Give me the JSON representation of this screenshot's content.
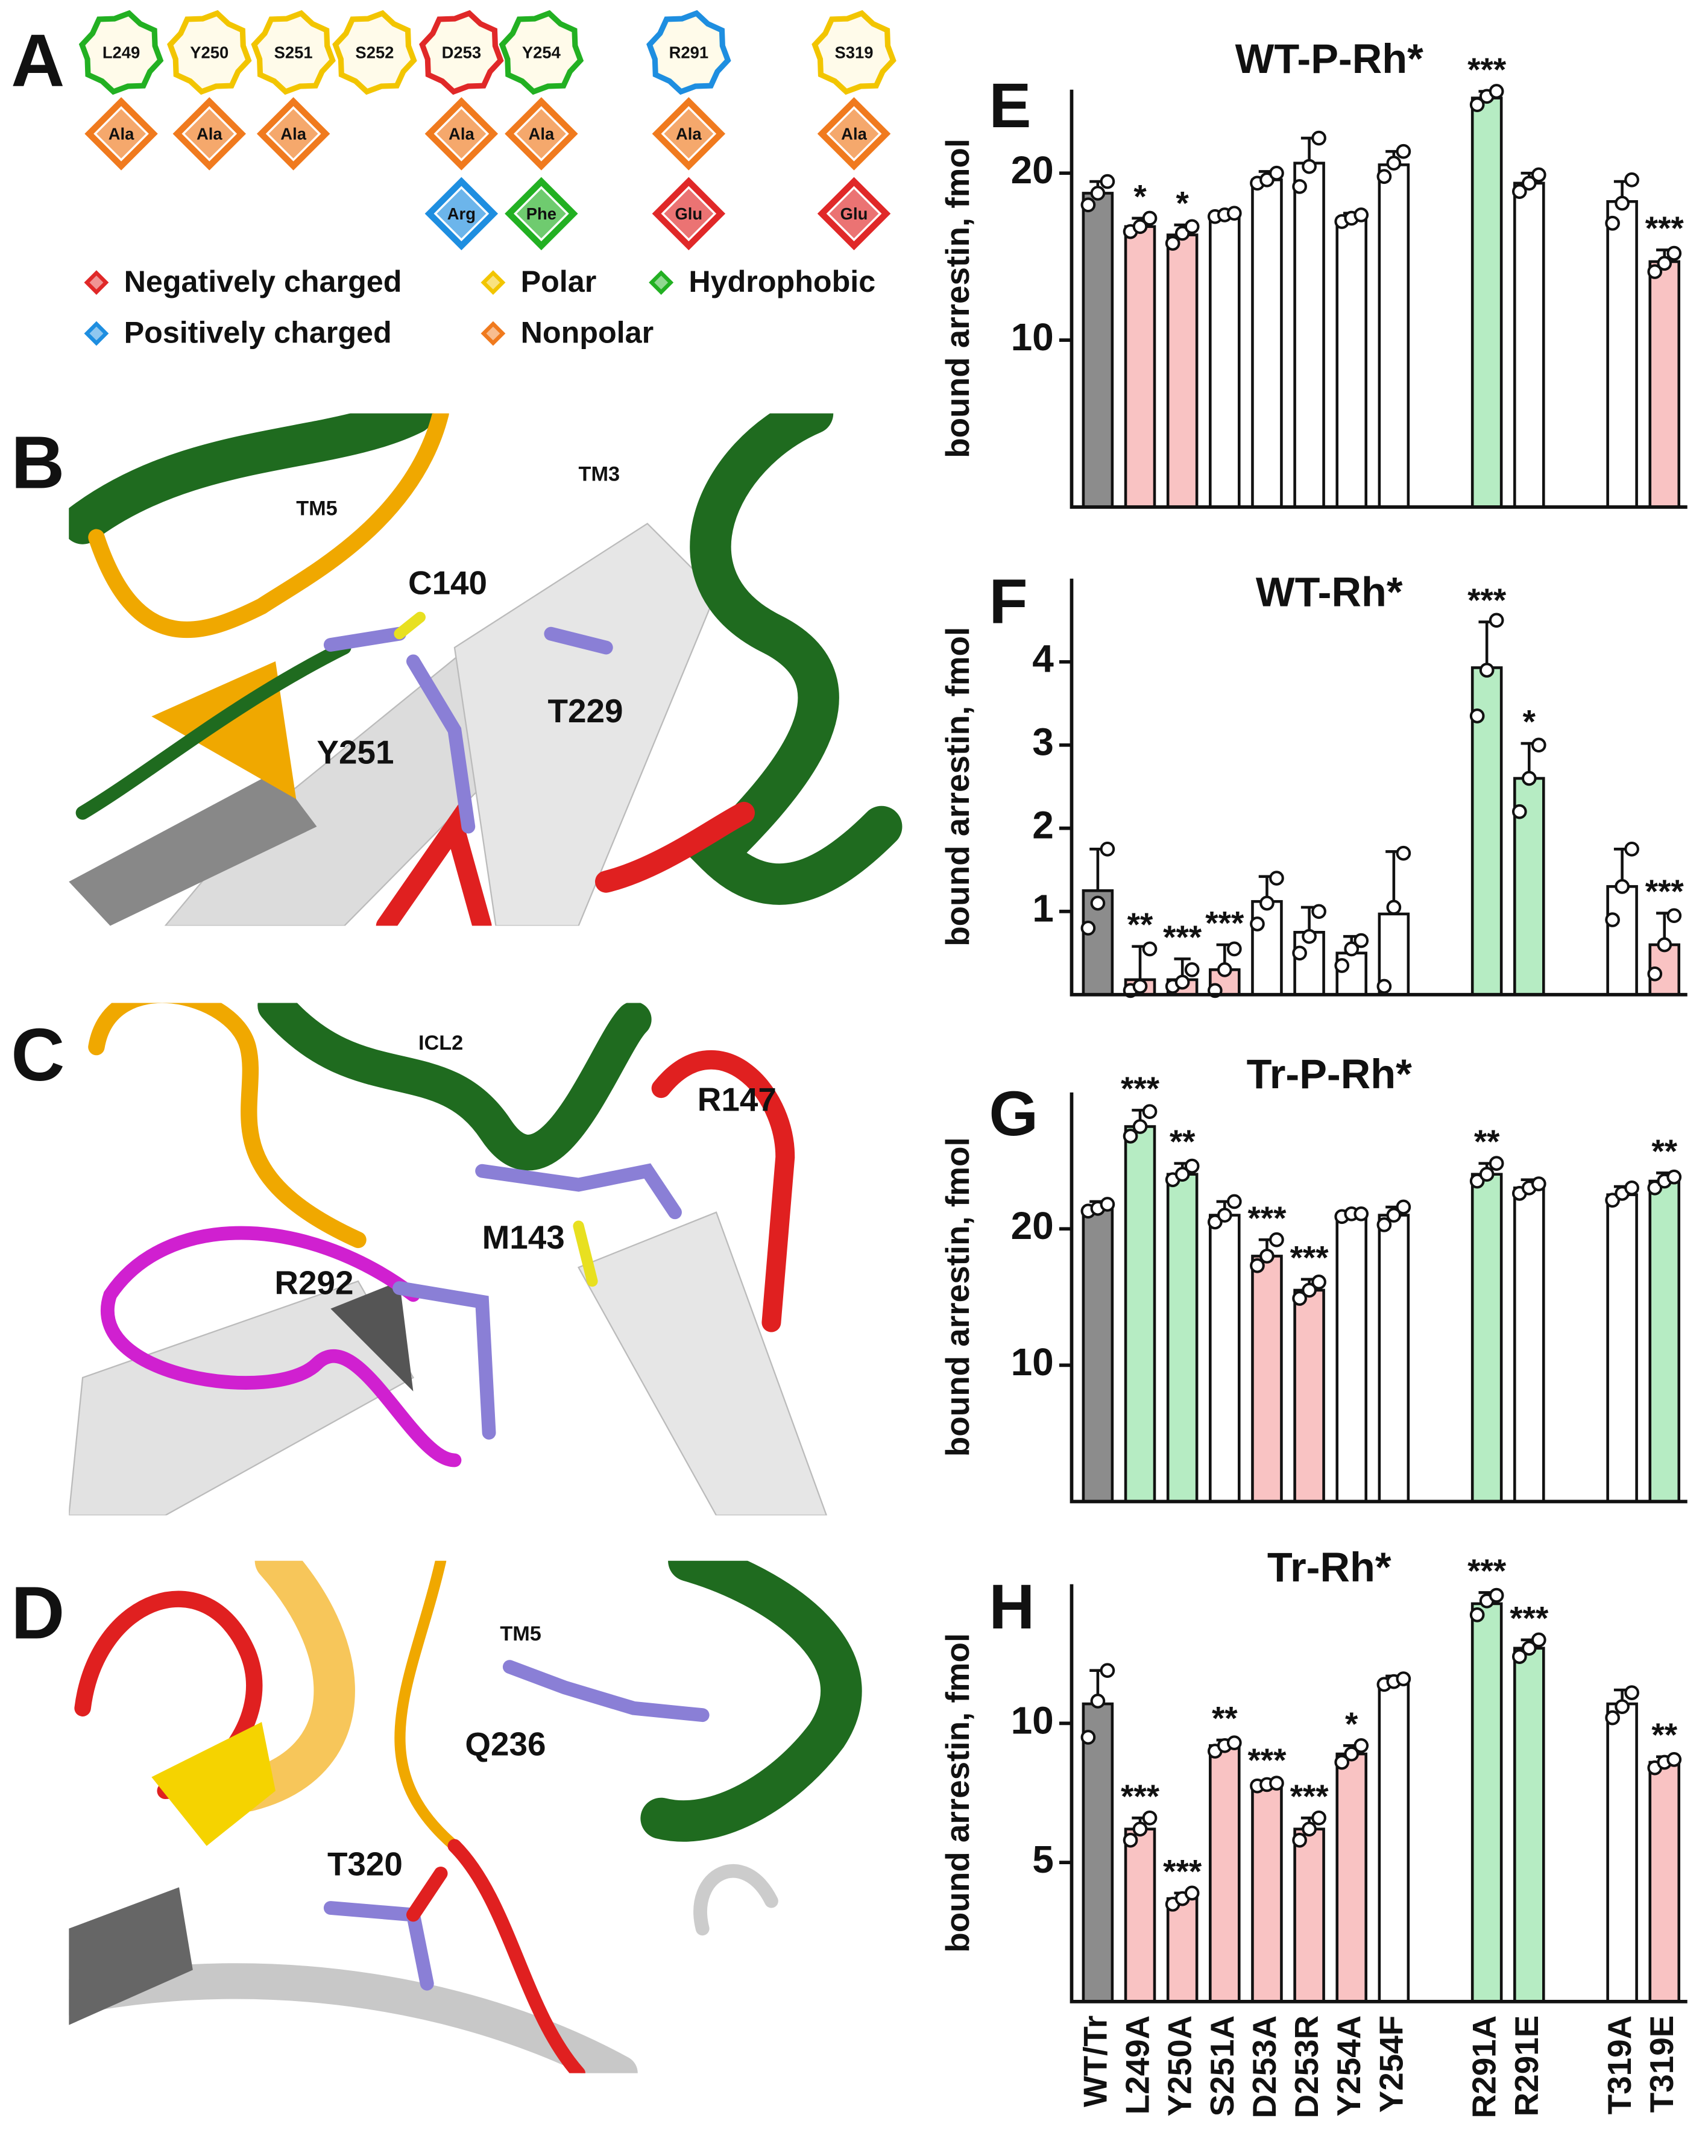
{
  "mutation_diagram": {
    "panel_label": "A",
    "residues": [
      {
        "label": "L249",
        "color": "#22b022",
        "mutants": [
          {
            "label": "Ala",
            "color": "#f07a1e"
          }
        ]
      },
      {
        "label": "Y250",
        "color": "#f2c500",
        "mutants": [
          {
            "label": "Ala",
            "color": "#f07a1e"
          }
        ]
      },
      {
        "label": "S251",
        "color": "#f2c500",
        "mutants": [
          {
            "label": "Ala",
            "color": "#f07a1e"
          }
        ]
      },
      {
        "label": "S252",
        "color": "#f2c500",
        "mutants": []
      },
      {
        "label": "D253",
        "color": "#e02828",
        "mutants": [
          {
            "label": "Ala",
            "color": "#f07a1e"
          },
          {
            "label": "Arg",
            "color": "#1e8ee0"
          }
        ]
      },
      {
        "label": "Y254",
        "color": "#22b022",
        "mutants": [
          {
            "label": "Ala",
            "color": "#f07a1e"
          },
          {
            "label": "Phe",
            "color": "#22b022"
          }
        ]
      },
      {
        "label": "R291",
        "color": "#1e8ee0",
        "mutants": [
          {
            "label": "Ala",
            "color": "#f07a1e"
          },
          {
            "label": "Glu",
            "color": "#e02828"
          }
        ]
      },
      {
        "label": "S319",
        "color": "#f2c500",
        "mutants": [
          {
            "label": "Ala",
            "color": "#f07a1e"
          },
          {
            "label": "Glu",
            "color": "#e02828"
          }
        ]
      }
    ],
    "legend": [
      {
        "label": "Negatively charged",
        "color": "#e02828"
      },
      {
        "label": "Polar",
        "color": "#f2c500"
      },
      {
        "label": "Hydrophobic",
        "color": "#22b022"
      },
      {
        "label": "Positively charged",
        "color": "#1e8ee0"
      },
      {
        "label": "Nonpolar",
        "color": "#f07a1e"
      }
    ]
  },
  "structure_panels": [
    {
      "panel_label": "B",
      "labels": [
        "TM5",
        "TM3",
        "C140",
        "Y251",
        "T229"
      ]
    },
    {
      "panel_label": "C",
      "labels": [
        "ICL2",
        "R147",
        "M143",
        "R292"
      ]
    },
    {
      "panel_label": "D",
      "labels": [
        "TM5",
        "Q236",
        "T320"
      ]
    }
  ],
  "chart_data": [
    {
      "type": "bar",
      "panel_label": "E",
      "title": "WT-P-Rh*",
      "y_label": "bound arrestin, fmol",
      "ylim": [
        0,
        25
      ],
      "yticks": [
        10,
        20
      ],
      "values": [
        18.8,
        16.8,
        16.3,
        17.5,
        19.6,
        20.6,
        17.3,
        20.5,
        24.5,
        19.4,
        18.3,
        14.7
      ],
      "errors": [
        0.7,
        0.5,
        0.6,
        0.2,
        0.5,
        1.5,
        0.3,
        0.8,
        0.4,
        0.6,
        1.2,
        0.7
      ],
      "points": [
        [
          18.1,
          18.8,
          19.5
        ],
        [
          16.5,
          16.8,
          17.3
        ],
        [
          15.8,
          16.4,
          16.8
        ],
        [
          17.4,
          17.5,
          17.6
        ],
        [
          19.4,
          19.6,
          20.0
        ],
        [
          19.2,
          20.4,
          22.1
        ],
        [
          17.1,
          17.3,
          17.5
        ],
        [
          19.8,
          20.6,
          21.3
        ],
        [
          24.1,
          24.6,
          24.9
        ],
        [
          18.9,
          19.4,
          19.9
        ],
        [
          17.0,
          18.2,
          19.6
        ],
        [
          14.1,
          14.6,
          15.2
        ]
      ],
      "colors": [
        "#8c8c8c",
        "#f9c3c3",
        "#f9c3c3",
        "#ffffff",
        "#ffffff",
        "#ffffff",
        "#ffffff",
        "#ffffff",
        "#b6ecc3",
        "#ffffff",
        "#ffffff",
        "#f9c3c3"
      ],
      "significance": [
        null,
        "*",
        "*",
        null,
        null,
        null,
        null,
        null,
        "***",
        null,
        null,
        "***"
      ]
    },
    {
      "type": "bar",
      "panel_label": "F",
      "title": "WT-Rh*",
      "y_label": "bound arrestin, fmol",
      "ylim": [
        0,
        5
      ],
      "yticks": [
        1,
        2,
        3,
        4
      ],
      "values": [
        1.25,
        0.18,
        0.18,
        0.3,
        1.12,
        0.75,
        0.5,
        0.97,
        3.93,
        2.6,
        1.3,
        0.6
      ],
      "errors": [
        0.5,
        0.4,
        0.25,
        0.3,
        0.3,
        0.3,
        0.2,
        0.75,
        0.55,
        0.42,
        0.45,
        0.38
      ],
      "points": [
        [
          0.8,
          1.1,
          1.75
        ],
        [
          0.05,
          0.1,
          0.55
        ],
        [
          0.1,
          0.15,
          0.3
        ],
        [
          0.05,
          0.3,
          0.55
        ],
        [
          0.85,
          1.1,
          1.4
        ],
        [
          0.5,
          0.7,
          1.0
        ],
        [
          0.35,
          0.55,
          0.65
        ],
        [
          0.1,
          1.05,
          1.7
        ],
        [
          3.35,
          3.9,
          4.5
        ],
        [
          2.2,
          2.6,
          3.0
        ],
        [
          0.9,
          1.3,
          1.75
        ],
        [
          0.25,
          0.6,
          0.95
        ]
      ],
      "colors": [
        "#8c8c8c",
        "#f9c3c3",
        "#f9c3c3",
        "#f9c3c3",
        "#ffffff",
        "#ffffff",
        "#ffffff",
        "#ffffff",
        "#b6ecc3",
        "#b6ecc3",
        "#ffffff",
        "#f9c3c3"
      ],
      "significance": [
        null,
        "**",
        "***",
        "***",
        null,
        null,
        null,
        null,
        "***",
        "*",
        null,
        "***"
      ]
    },
    {
      "type": "bar",
      "panel_label": "G",
      "title": "Tr-P-Rh*",
      "y_label": "bound arrestin, fmol",
      "ylim": [
        0,
        30
      ],
      "yticks": [
        10,
        20
      ],
      "values": [
        21.5,
        27.5,
        24,
        21,
        18,
        15.5,
        21,
        21,
        24,
        23,
        22.5,
        23.5
      ],
      "errors": [
        0.5,
        1.2,
        0.8,
        1,
        1.2,
        0.8,
        0.3,
        0.6,
        0.8,
        0.6,
        0.6,
        0.6
      ],
      "points": [
        [
          21.3,
          21.5,
          21.8
        ],
        [
          26.8,
          27.5,
          28.6
        ],
        [
          23.6,
          24,
          24.6
        ],
        [
          20.5,
          21,
          22
        ],
        [
          17.3,
          18,
          19.2
        ],
        [
          14.9,
          15.5,
          16.1
        ],
        [
          20.9,
          21.1,
          21.1
        ],
        [
          20.3,
          21,
          21.6
        ],
        [
          23.5,
          24,
          24.8
        ],
        [
          22.6,
          23,
          23.3
        ],
        [
          22.1,
          22.6,
          23
        ],
        [
          23,
          23.5,
          23.8
        ]
      ],
      "colors": [
        "#8c8c8c",
        "#b6ecc3",
        "#b6ecc3",
        "#ffffff",
        "#f9c3c3",
        "#f9c3c3",
        "#ffffff",
        "#ffffff",
        "#b6ecc3",
        "#ffffff",
        "#ffffff",
        "#b6ecc3"
      ],
      "significance": [
        null,
        "***",
        "**",
        null,
        "***",
        "***",
        null,
        null,
        "**",
        null,
        null,
        "**"
      ]
    },
    {
      "type": "bar",
      "panel_label": "H",
      "title": "Tr-Rh*",
      "y_label": "bound arrestin, fmol",
      "ylim": [
        0,
        15
      ],
      "yticks": [
        5,
        10
      ],
      "categories": [
        "WT/Tr",
        "L249A",
        "Y250A",
        "S251A",
        "D253A",
        "D253R",
        "Y254A",
        "Y254F",
        "R291A",
        "R291E",
        "T319A",
        "T319E"
      ],
      "values": [
        10.7,
        6.2,
        3.7,
        9.2,
        7.8,
        6.2,
        8.9,
        11.5,
        14.3,
        12.7,
        10.7,
        8.6
      ],
      "errors": [
        1.2,
        0.4,
        0.2,
        0.2,
        0.1,
        0.4,
        0.3,
        0.2,
        0.4,
        0.3,
        0.5,
        0.2
      ],
      "points": [
        [
          9.5,
          10.8,
          11.9
        ],
        [
          5.8,
          6.2,
          6.6
        ],
        [
          3.5,
          3.7,
          3.9
        ],
        [
          9,
          9.2,
          9.3
        ],
        [
          7.75,
          7.8,
          7.85
        ],
        [
          5.8,
          6.2,
          6.6
        ],
        [
          8.6,
          8.9,
          9.2
        ],
        [
          11.4,
          11.5,
          11.6
        ],
        [
          13.9,
          14.4,
          14.6
        ],
        [
          12.4,
          12.7,
          13
        ],
        [
          10.2,
          10.6,
          11.1
        ],
        [
          8.4,
          8.6,
          8.7
        ]
      ],
      "colors": [
        "#8c8c8c",
        "#f9c3c3",
        "#f9c3c3",
        "#f9c3c3",
        "#f9c3c3",
        "#f9c3c3",
        "#f9c3c3",
        "#ffffff",
        "#b6ecc3",
        "#b6ecc3",
        "#ffffff",
        "#f9c3c3"
      ],
      "significance": [
        null,
        "***",
        "***",
        "**",
        "***",
        "***",
        "*",
        null,
        "***",
        "***",
        null,
        "**"
      ]
    }
  ]
}
